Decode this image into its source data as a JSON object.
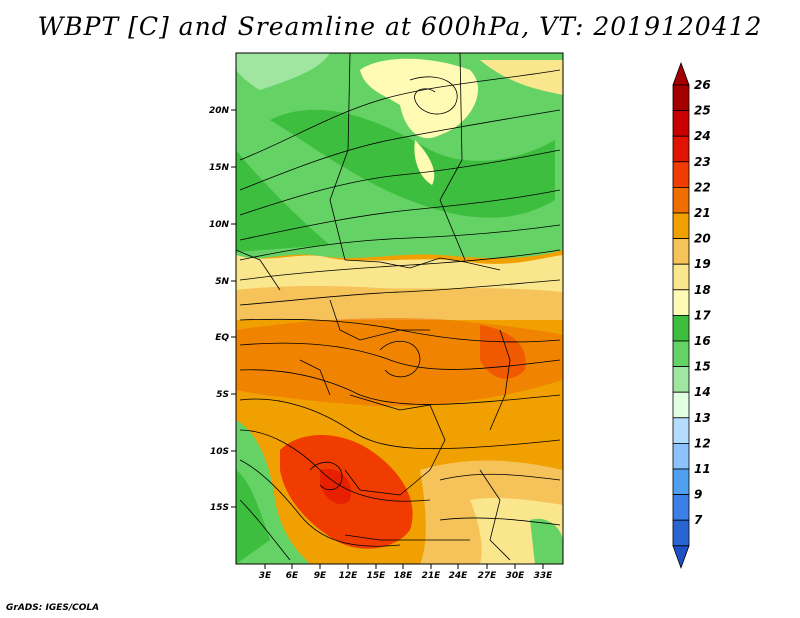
{
  "title": "WBPT [C] and Sreamline at 600hPa, VT: 2019120412",
  "footer": "GrADS: IGES/COLA",
  "axes": {
    "lon_labels": [
      "3E",
      "6E",
      "9E",
      "12E",
      "15E",
      "18E",
      "21E",
      "24E",
      "27E",
      "30E",
      "33E"
    ],
    "lat_labels": [
      "20N",
      "15N",
      "10N",
      "5N",
      "EQ",
      "5S",
      "10S",
      "15S"
    ]
  },
  "colorbar": {
    "levels": [
      {
        "label": "26",
        "color": "#a50000"
      },
      {
        "label": "25",
        "color": "#c80000"
      },
      {
        "label": "24",
        "color": "#e11400"
      },
      {
        "label": "23",
        "color": "#f03c00"
      },
      {
        "label": "22",
        "color": "#f06e00"
      },
      {
        "label": "21",
        "color": "#f0a000"
      },
      {
        "label": "20",
        "color": "#f5c35a"
      },
      {
        "label": "19",
        "color": "#fae68c"
      },
      {
        "label": "18",
        "color": "#fffab4"
      },
      {
        "label": "17",
        "color": "#3ebe3e"
      },
      {
        "label": "16",
        "color": "#64d264"
      },
      {
        "label": "15",
        "color": "#a0e6a0"
      },
      {
        "label": "14",
        "color": "#e1ffe1"
      },
      {
        "label": "13",
        "color": "#b4dcff"
      },
      {
        "label": "12",
        "color": "#8cc3ff"
      },
      {
        "label": "11",
        "color": "#50a0f0"
      },
      {
        "label": "9",
        "color": "#3c7fe6"
      },
      {
        "label": "7",
        "color": "#2864d2"
      }
    ],
    "under_color": "#1e50c8"
  }
}
